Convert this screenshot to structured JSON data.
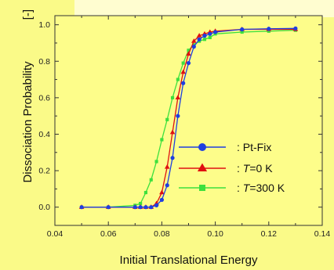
{
  "chart_data": {
    "type": "line",
    "title": "",
    "xlabel": "Initial Translational Energy",
    "ylabel": "Dissociation Probability",
    "ylabel_unit": "[-]",
    "xlim": [
      0.04,
      0.14
    ],
    "ylim": [
      -0.1,
      1.05
    ],
    "x_ticks": [
      "0.04",
      "0.06",
      "0.08",
      "0.10",
      "0.12",
      "0.14"
    ],
    "y_ticks": [
      "0.0",
      "0.2",
      "0.4",
      "0.6",
      "0.8",
      "1.0"
    ],
    "x_tick_values": [
      0.04,
      0.06,
      0.08,
      0.1,
      0.12,
      0.14
    ],
    "y_tick_values": [
      0.0,
      0.2,
      0.4,
      0.6,
      0.8,
      1.0
    ],
    "grid": false,
    "legend_position": "lower-right",
    "series": [
      {
        "name": ": Pt-Fix",
        "color": "#1f3fe0",
        "marker": "circle",
        "x": [
          0.05,
          0.06,
          0.07,
          0.072,
          0.074,
          0.076,
          0.078,
          0.08,
          0.082,
          0.084,
          0.086,
          0.088,
          0.09,
          0.092,
          0.094,
          0.096,
          0.098,
          0.1,
          0.11,
          0.12,
          0.13
        ],
        "y": [
          0.0,
          0.0,
          0.0,
          0.0,
          0.0,
          0.0,
          0.01,
          0.04,
          0.12,
          0.27,
          0.5,
          0.68,
          0.79,
          0.88,
          0.92,
          0.94,
          0.95,
          0.96,
          0.975,
          0.978,
          0.98
        ]
      },
      {
        "name": ": T=0 K",
        "name_italic_part": "T",
        "color": "#e01010",
        "marker": "triangle",
        "x": [
          0.05,
          0.06,
          0.07,
          0.072,
          0.074,
          0.076,
          0.078,
          0.08,
          0.082,
          0.084,
          0.086,
          0.088,
          0.09,
          0.092,
          0.094,
          0.096,
          0.098,
          0.1,
          0.11,
          0.12,
          0.13
        ],
        "y": [
          0.0,
          0.0,
          0.0,
          0.0,
          0.0,
          0.0,
          0.02,
          0.08,
          0.22,
          0.41,
          0.6,
          0.74,
          0.84,
          0.91,
          0.94,
          0.95,
          0.96,
          0.965,
          0.975,
          0.975,
          0.975
        ]
      },
      {
        "name": ": T=300 K",
        "name_italic_part": "T",
        "color": "#3de03d",
        "marker": "square",
        "x": [
          0.05,
          0.06,
          0.07,
          0.072,
          0.074,
          0.076,
          0.078,
          0.08,
          0.082,
          0.084,
          0.086,
          0.088,
          0.09,
          0.092,
          0.094,
          0.096,
          0.098,
          0.1,
          0.11,
          0.12,
          0.13
        ],
        "y": [
          0.0,
          0.0,
          0.01,
          0.02,
          0.08,
          0.15,
          0.25,
          0.37,
          0.48,
          0.6,
          0.7,
          0.79,
          0.86,
          0.89,
          0.91,
          0.92,
          0.93,
          0.95,
          0.96,
          0.965,
          0.97
        ]
      }
    ]
  }
}
